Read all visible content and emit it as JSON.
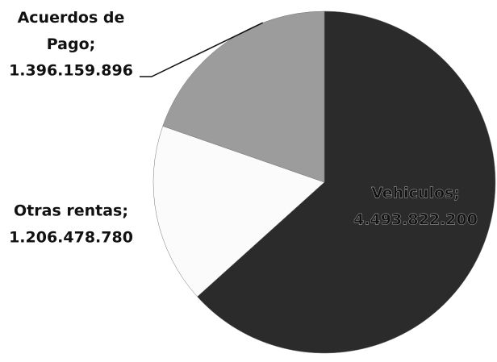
{
  "chart_data": {
    "type": "pie",
    "categories": [
      "Vehiculos",
      "Otras rentas",
      "Acuerdos de Pago"
    ],
    "values": [
      4493822200,
      1206478780,
      1396159896
    ],
    "value_labels": [
      "4.493.822.200",
      "1.206.478.780",
      "1.396.159.896"
    ],
    "colors": [
      "#2b2b2b",
      "#fbfbfb",
      "#9c9c9c"
    ],
    "label_separator": ";"
  }
}
